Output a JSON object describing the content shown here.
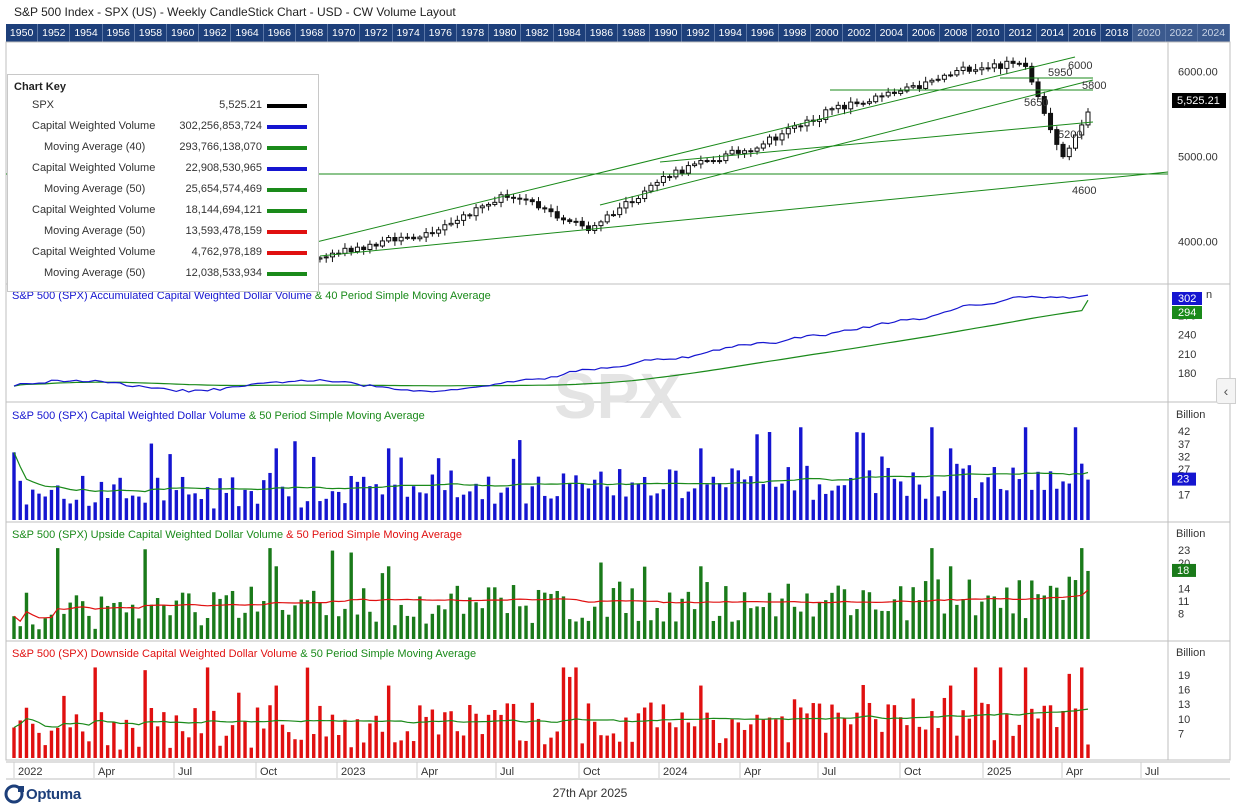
{
  "title": "S&P 500 Index - SPX (US) - Weekly CandleStick Chart - USD - CW Volume Layout",
  "years": [
    "1950",
    "1952",
    "1954",
    "1956",
    "1958",
    "1960",
    "1962",
    "1964",
    "1966",
    "1968",
    "1970",
    "1972",
    "1974",
    "1976",
    "1978",
    "1980",
    "1982",
    "1984",
    "1986",
    "1988",
    "1990",
    "1992",
    "1994",
    "1996",
    "1998",
    "2000",
    "2002",
    "2004",
    "2006",
    "2008",
    "2010",
    "2012",
    "2014",
    "2016",
    "2018",
    "2020",
    "2022",
    "2024"
  ],
  "future_years": [
    "2020",
    "2022",
    "2024"
  ],
  "watermark": "SPX",
  "chart_key": {
    "title": "Chart Key",
    "rows": [
      {
        "label": "SPX",
        "value": "5,525.21",
        "color": "#000000",
        "indent": false
      },
      {
        "label": "Capital Weighted Volume",
        "value": "302,256,853,724",
        "color": "#1515d0",
        "indent": false
      },
      {
        "label": "Moving Average (40)",
        "value": "293,766,138,070",
        "color": "#1a8a1a",
        "indent": true
      },
      {
        "label": "Capital Weighted Volume",
        "value": "22,908,530,965",
        "color": "#1515d0",
        "indent": false
      },
      {
        "label": "Moving Average (50)",
        "value": "25,654,574,469",
        "color": "#1a8a1a",
        "indent": true
      },
      {
        "label": "Capital Weighted Volume",
        "value": "18,144,694,121",
        "color": "#1a8a1a",
        "indent": false
      },
      {
        "label": "Moving Average (50)",
        "value": "13,593,478,159",
        "color": "#e01010",
        "indent": true
      },
      {
        "label": "Capital Weighted Volume",
        "value": "4,762,978,189",
        "color": "#e01010",
        "indent": false
      },
      {
        "label": "Moving Average (50)",
        "value": "12,038,533,934",
        "color": "#1a8a1a",
        "indent": true
      }
    ]
  },
  "panels": {
    "price": {
      "y_ticks": [
        "6000.00",
        "5000.00",
        "4000.00"
      ],
      "last_value": "5,525.21",
      "annotations": [
        "6000",
        "5950",
        "5800",
        "5650",
        "5200",
        "4600"
      ]
    },
    "accum": {
      "title_blue": "S&P 500 (SPX)  Accumulated Capital Weighted Dollar Volume",
      "title_green": " & 40 Period Simple Moving Average",
      "unit": "Billion",
      "y_ticks": [
        "270",
        "240",
        "210",
        "180"
      ],
      "last_blue": "302",
      "last_green": "294"
    },
    "cwv": {
      "title_blue": "S&P 500 (SPX)  Capital Weighted Dollar Volume",
      "title_green": " & 50 Period Simple Moving Average",
      "unit": "Billion",
      "y_ticks": [
        "42",
        "37",
        "32",
        "27",
        "17"
      ],
      "last_value": "23"
    },
    "upside": {
      "title_green": "S&P 500 (SPX)  Upside Capital Weighted Dollar Volume",
      "title_red": " & 50 Period Simple Moving Average",
      "unit": "Billion",
      "y_ticks": [
        "23",
        "20",
        "14",
        "11",
        "8"
      ],
      "last_value": "18"
    },
    "downside": {
      "title_red": "S&P 500 (SPX)  Downside Capital Weighted Dollar Volume",
      "title_green": " & 50 Period Simple Moving Average",
      "unit": "Billion",
      "y_ticks": [
        "19",
        "16",
        "13",
        "10",
        "7"
      ]
    }
  },
  "x_axis_labels": [
    "2022",
    "Apr",
    "Jul",
    "Oct",
    "2023",
    "Apr",
    "Jul",
    "Oct",
    "2024",
    "Apr",
    "Jul",
    "Oct",
    "2025",
    "Apr",
    "Jul"
  ],
  "footer_date": "27th Apr 2025",
  "logo_text": "Optuma",
  "chart_data": [
    {
      "type": "candlestick",
      "title": "S&P 500 Index - SPX (US) - Weekly CandleStick Chart - USD - CW Volume Layout",
      "series": [
        {
          "name": "SPX",
          "last": 5525.21
        }
      ],
      "anchors": [
        {
          "x": "2022-10",
          "close": 3600
        },
        {
          "x": "2023-01",
          "close": 3900
        },
        {
          "x": "2023-04",
          "close": 4100
        },
        {
          "x": "2023-07",
          "close": 4550
        },
        {
          "x": "2023-10",
          "close": 4150
        },
        {
          "x": "2024-01",
          "close": 4800
        },
        {
          "x": "2024-04",
          "close": 5100
        },
        {
          "x": "2024-07",
          "close": 5550
        },
        {
          "x": "2024-10",
          "close": 5800
        },
        {
          "x": "2024-12",
          "close": 6050
        },
        {
          "x": "2025-02",
          "close": 6100
        },
        {
          "x": "2025-04",
          "close": 4980
        },
        {
          "x": "2025-04-25",
          "close": 5525.21
        }
      ],
      "levels": [
        6000,
        5950,
        5800,
        5650,
        5200,
        4600
      ],
      "ylim": [
        3500,
        6350
      ]
    },
    {
      "type": "line",
      "title": "S&P 500 (SPX)  Accumulated Capital Weighted Dollar Volume & 40 Period Simple Moving Average",
      "ylabel": "Billion",
      "series": [
        {
          "name": "Capital Weighted Volume",
          "last": 302
        },
        {
          "name": "Moving Average (40)",
          "last": 294
        }
      ],
      "ylim": [
        150,
        310
      ]
    },
    {
      "type": "bar",
      "title": "S&P 500 (SPX)  Capital Weighted Dollar Volume & 50 Period Simple Moving Average",
      "ylabel": "Billion",
      "series": [
        {
          "name": "Capital Weighted Volume",
          "last": 22.9
        },
        {
          "name": "Moving Average (50)",
          "last": 25.7
        }
      ],
      "ylim": [
        7,
        44
      ]
    },
    {
      "type": "bar",
      "title": "S&P 500 (SPX)  Upside Capital Weighted Dollar Volume & 50 Period Simple Moving Average",
      "ylabel": "Billion",
      "series": [
        {
          "name": "Capital Weighted Volume",
          "last": 18.1
        },
        {
          "name": "Moving Average (50)",
          "last": 13.6
        }
      ],
      "ylim": [
        2,
        24
      ]
    },
    {
      "type": "bar",
      "title": "S&P 500 (SPX)  Downside Capital Weighted Dollar Volume & 50 Period Simple Moving Average",
      "ylabel": "Billion",
      "series": [
        {
          "name": "Capital Weighted Volume",
          "last": 4.76
        },
        {
          "name": "Moving Average (50)",
          "last": 12.0
        }
      ],
      "ylim": [
        2,
        21
      ]
    }
  ]
}
